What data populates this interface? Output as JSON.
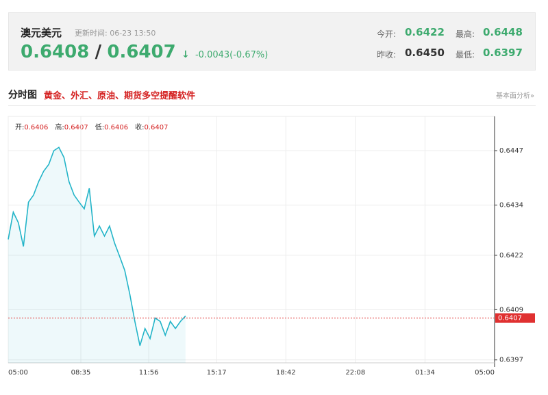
{
  "header": {
    "title": "澳元美元",
    "update_time": "更新时间: 06-23 13:50",
    "bid": "0.6408",
    "separator": "/",
    "ask": "0.6407",
    "arrow": "↓",
    "change": "-0.0043(-0.67%)",
    "open_label": "今开:",
    "open": "0.6422",
    "high_label": "最高:",
    "high": "0.6448",
    "prev_close_label": "昨收:",
    "prev_close": "0.6450",
    "low_label": "最低:",
    "low": "0.6397"
  },
  "section": {
    "title": "分时图",
    "promo": "黄金、外汇、原油、期货多空提醒软件",
    "link": "基本面分析»"
  },
  "ohlc": [
    {
      "label": "开:",
      "value": "0.6406"
    },
    {
      "label": "高:",
      "value": "0.6407"
    },
    {
      "label": "低:",
      "value": "0.6406"
    },
    {
      "label": "收:",
      "value": "0.6407"
    }
  ],
  "chart_data": {
    "type": "line",
    "x": [
      0,
      15,
      30,
      45,
      60,
      75,
      90,
      105,
      120,
      135,
      150,
      165,
      180,
      195,
      210,
      225,
      240,
      255,
      270,
      285,
      300,
      315,
      330,
      345,
      360,
      375,
      390,
      405,
      420,
      435,
      450,
      465,
      480,
      495,
      510,
      525
    ],
    "series": [
      {
        "color": "#22b4c8",
        "values": [
          0.64258,
          0.64323,
          0.64298,
          0.64241,
          0.64347,
          0.64364,
          0.64396,
          0.64421,
          0.64437,
          0.6447,
          0.64478,
          0.64454,
          0.64396,
          0.64364,
          0.64347,
          0.64331,
          0.6438,
          0.64266,
          0.6429,
          0.64266,
          0.6429,
          0.64249,
          0.64217,
          0.64184,
          0.64127,
          0.64062,
          0.64004,
          0.64045,
          0.64021,
          0.6407,
          0.64062,
          0.64029,
          0.64062,
          0.64045,
          0.64062,
          0.64075
        ]
      }
    ],
    "xlim": [
      0,
      1440
    ],
    "xticks": [
      {
        "value": 0,
        "label": "05:00"
      },
      {
        "value": 215,
        "label": "08:35"
      },
      {
        "value": 416,
        "label": "11:56"
      },
      {
        "value": 617,
        "label": "15:17"
      },
      {
        "value": 822,
        "label": "18:42"
      },
      {
        "value": 1028,
        "label": "22:08"
      },
      {
        "value": 1234,
        "label": "01:34"
      },
      {
        "value": 1440,
        "label": "05:00"
      }
    ],
    "ylim": [
      0.63963,
      0.64552
    ],
    "yticks": [
      0.6397,
      0.6409,
      0.6422,
      0.6434,
      0.6447
    ],
    "reference_line": {
      "value": 0.6407,
      "color": "#e03030"
    },
    "grid": true
  }
}
